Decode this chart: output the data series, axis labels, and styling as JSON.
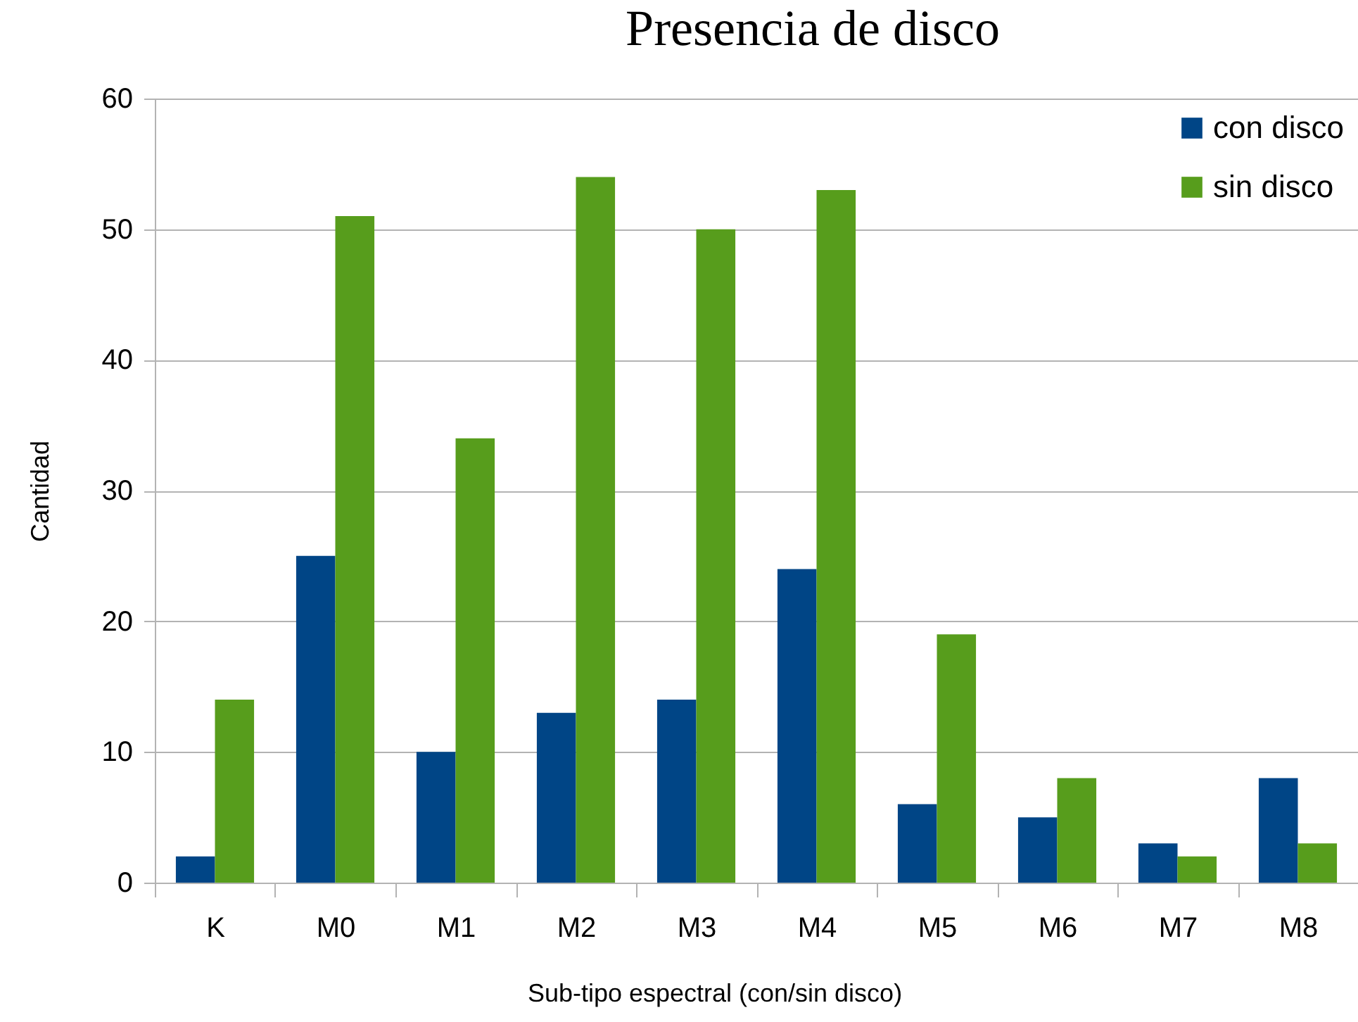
{
  "chart_data": {
    "type": "bar",
    "title": "Presencia de disco",
    "xlabel": "Sub-tipo espectral (con/sin disco)",
    "ylabel": "Cantidad",
    "categories": [
      "K",
      "M0",
      "M1",
      "M2",
      "M3",
      "M4",
      "M5",
      "M6",
      "M7",
      "M8"
    ],
    "series": [
      {
        "name": "con disco",
        "color": "#004586",
        "values": [
          2,
          25,
          10,
          13,
          14,
          24,
          6,
          5,
          3,
          8
        ]
      },
      {
        "name": "sin disco",
        "color": "#579d1c",
        "values": [
          14,
          51,
          34,
          54,
          50,
          53,
          19,
          8,
          2,
          3
        ]
      }
    ],
    "ylim": [
      0,
      60
    ],
    "yticks": [
      0,
      10,
      20,
      30,
      40,
      50,
      60
    ],
    "grid": "y",
    "legend": "top right"
  }
}
